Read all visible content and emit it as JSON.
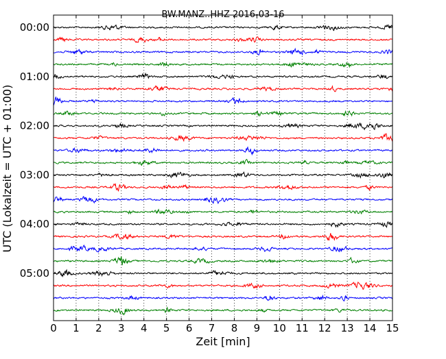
{
  "chart_data": {
    "type": "line",
    "title": "BW.MANZ..HHZ 2016-03-16",
    "xlabel": "Zeit  [min]",
    "ylabel": "UTC (Lokalzeit = UTC + 01:00)",
    "xlim": [
      0,
      15
    ],
    "xticks": [
      "0",
      "1",
      "2",
      "3",
      "4",
      "5",
      "6",
      "7",
      "8",
      "9",
      "10",
      "11",
      "12",
      "13",
      "14",
      "15"
    ],
    "yticks": [
      "00:00",
      "01:00",
      "02:00",
      "03:00",
      "04:00",
      "05:00"
    ],
    "minutes_per_row": 15,
    "grid": "vertical dotted lines at each minute",
    "trace_colors": [
      "#000000",
      "#ff0000",
      "#0000ff",
      "#008000"
    ],
    "rows": 24
  }
}
